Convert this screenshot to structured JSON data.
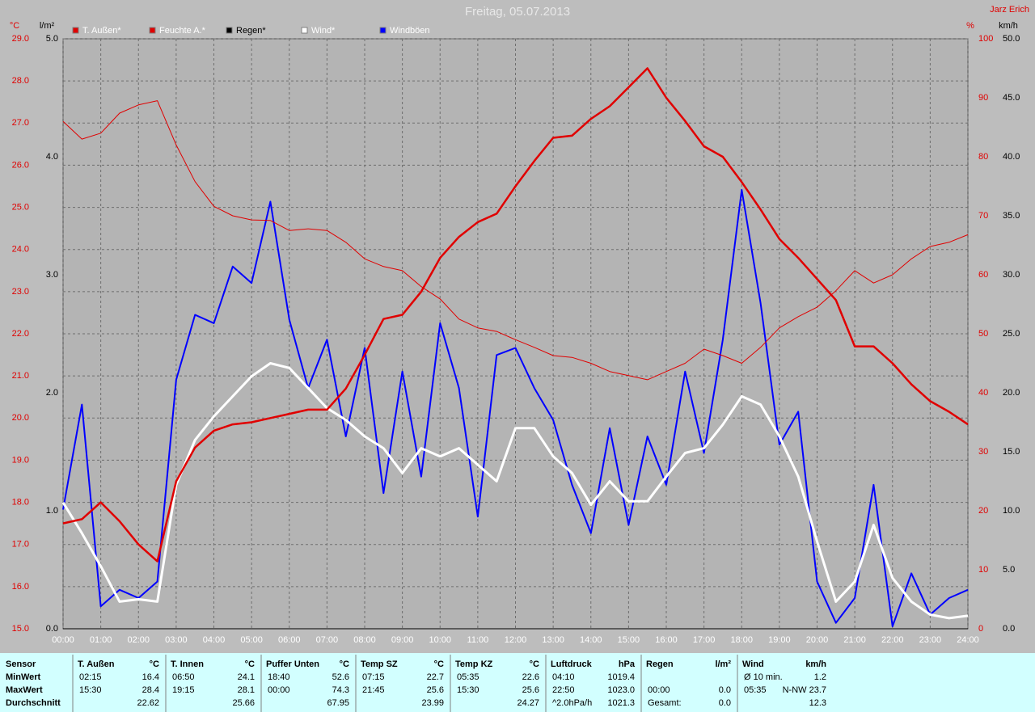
{
  "chart_data": {
    "type": "line",
    "title": "Freitag, 05.07.2013",
    "author": "Jarz Erich",
    "ylabel": "°C",
    "y2label": "%",
    "y3label": "l/m²",
    "y4label": "km/h",
    "x": [
      "00:00",
      "00:30",
      "01:00",
      "01:30",
      "02:00",
      "02:30",
      "03:00",
      "03:30",
      "04:00",
      "04:30",
      "05:00",
      "05:30",
      "06:00",
      "06:30",
      "07:00",
      "07:30",
      "08:00",
      "08:30",
      "09:00",
      "09:30",
      "10:00",
      "10:30",
      "11:00",
      "11:30",
      "12:00",
      "12:30",
      "13:00",
      "13:30",
      "14:00",
      "14:30",
      "15:00",
      "15:30",
      "16:00",
      "16:30",
      "17:00",
      "17:30",
      "18:00",
      "18:30",
      "19:00",
      "19:30",
      "20:00",
      "20:30",
      "21:00",
      "21:30",
      "22:00",
      "22:30",
      "23:00",
      "23:30",
      "24:00"
    ],
    "xlim": [
      "00:00",
      "24:00"
    ],
    "xticks": [
      "00:00",
      "01:00",
      "02:00",
      "03:00",
      "04:00",
      "05:00",
      "06:00",
      "07:00",
      "08:00",
      "09:00",
      "10:00",
      "11:00",
      "12:00",
      "13:00",
      "14:00",
      "15:00",
      "16:00",
      "17:00",
      "18:00",
      "19:00",
      "20:00",
      "21:00",
      "22:00",
      "23:00",
      "24:00"
    ],
    "ylim": [
      15,
      29
    ],
    "yticks": [
      {
        "value": 15,
        "label": "15.0"
      },
      {
        "value": 16,
        "label": "16.0"
      },
      {
        "value": 17,
        "label": "17.0"
      },
      {
        "value": 18,
        "label": "18.0"
      },
      {
        "value": 19,
        "label": "19.0"
      },
      {
        "value": 20,
        "label": "20.0"
      },
      {
        "value": 21,
        "label": "21.0"
      },
      {
        "value": 22,
        "label": "22.0"
      },
      {
        "value": 23,
        "label": "23.0"
      },
      {
        "value": 24,
        "label": "24.0"
      },
      {
        "value": 25,
        "label": "25.0"
      },
      {
        "value": 26,
        "label": "26.0"
      },
      {
        "value": 27,
        "label": "27.0"
      },
      {
        "value": 28,
        "label": "28.0"
      },
      {
        "value": 29,
        "label": "29.0"
      }
    ],
    "y2lim": [
      0,
      100
    ],
    "y2ticks": [
      0,
      10,
      20,
      30,
      40,
      50,
      60,
      70,
      80,
      90,
      100
    ],
    "y3lim": [
      0,
      5
    ],
    "y3ticks": [
      {
        "value": 0,
        "label": "0.0"
      },
      {
        "value": 1,
        "label": "1.0"
      },
      {
        "value": 2,
        "label": "2.0"
      },
      {
        "value": 3,
        "label": "3.0"
      },
      {
        "value": 4,
        "label": "4.0"
      },
      {
        "value": 5,
        "label": "5.0"
      }
    ],
    "y4lim": [
      0,
      50
    ],
    "y4ticks": [
      {
        "value": 0,
        "label": "0.0"
      },
      {
        "value": 5,
        "label": "5.0"
      },
      {
        "value": 10,
        "label": "10.0"
      },
      {
        "value": 15,
        "label": "15.0"
      },
      {
        "value": 20,
        "label": "20.0"
      },
      {
        "value": 25,
        "label": "25.0"
      },
      {
        "value": 30,
        "label": "30.0"
      },
      {
        "value": 35,
        "label": "35.0"
      },
      {
        "value": 40,
        "label": "40.0"
      },
      {
        "value": 45,
        "label": "45.0"
      },
      {
        "value": 50,
        "label": "50.0"
      }
    ],
    "grid": true,
    "series": [
      {
        "name": "T. Außen*",
        "color": "#e00000",
        "axis": "y",
        "width": 2.5,
        "values": [
          17.5,
          17.6,
          18.0,
          17.55,
          17.0,
          16.6,
          18.5,
          19.3,
          19.7,
          19.85,
          19.9,
          20.0,
          20.1,
          20.2,
          20.2,
          20.7,
          21.5,
          22.35,
          22.45,
          23.0,
          23.8,
          24.3,
          24.65,
          24.85,
          25.5,
          26.1,
          26.65,
          26.7,
          27.1,
          27.4,
          27.85,
          28.3,
          27.6,
          27.05,
          26.45,
          26.2,
          25.6,
          24.95,
          24.25,
          23.8,
          23.3,
          22.8,
          21.7,
          21.7,
          21.3,
          20.8,
          20.4,
          20.15,
          19.85
        ]
      },
      {
        "name": "Feuchte A.*",
        "color": "#e00000",
        "axis": "y2",
        "width": 1,
        "values": [
          86,
          83,
          84,
          87.4,
          88.8,
          89.5,
          82,
          75.8,
          71.6,
          70,
          69.3,
          69.2,
          67.5,
          67.8,
          67.5,
          65.5,
          62.7,
          61.4,
          60.7,
          58,
          55.9,
          52.5,
          51,
          50.4,
          49,
          47.7,
          46.3,
          46,
          45,
          43.6,
          42.9,
          42.2,
          43.6,
          45,
          47.4,
          46.3,
          45,
          47.7,
          51,
          52.9,
          54.5,
          57.3,
          60.7,
          58.6,
          60,
          62.7,
          64.8,
          65.5,
          66.8
        ]
      },
      {
        "name": "Regen*",
        "color": "#000000",
        "axis": "y3",
        "width": 1,
        "values": [
          0,
          0,
          0,
          0,
          0,
          0,
          0,
          0,
          0,
          0,
          0,
          0,
          0,
          0,
          0,
          0,
          0,
          0,
          0,
          0,
          0,
          0,
          0,
          0,
          0,
          0,
          0,
          0,
          0,
          0,
          0,
          0,
          0,
          0,
          0,
          0,
          0,
          0,
          0,
          0,
          0,
          0,
          0,
          0,
          0,
          0,
          0,
          0,
          0
        ]
      },
      {
        "name": "Wind*",
        "color": "#ffffff",
        "axis": "y4",
        "width": 3,
        "values": [
          10.7,
          8.1,
          5.3,
          2.3,
          2.5,
          2.3,
          12.2,
          16,
          18,
          19.7,
          21.4,
          22.5,
          22.1,
          20.4,
          18.7,
          17.7,
          16.3,
          15.3,
          13.2,
          15.3,
          14.6,
          15.3,
          13.9,
          12.5,
          17,
          17,
          14.6,
          13.2,
          10.5,
          12.5,
          10.8,
          10.8,
          12.9,
          14.9,
          15.3,
          17.3,
          19.7,
          19,
          16.3,
          12.9,
          7.4,
          2.3,
          4,
          8.8,
          4.3,
          2.3,
          1.2,
          0.9,
          1.1
        ]
      },
      {
        "name": "Windböen",
        "color": "#0000ff",
        "axis": "y4",
        "width": 2,
        "values": [
          10.1,
          19,
          1.9,
          3.3,
          2.6,
          4,
          21.1,
          26.6,
          25.9,
          30.7,
          29.3,
          36.2,
          26.2,
          20.4,
          24.5,
          16.3,
          23.8,
          11.5,
          21.8,
          12.9,
          25.9,
          20.4,
          9.5,
          23.2,
          23.8,
          20.4,
          17.7,
          12.2,
          8.1,
          17,
          8.8,
          16.3,
          12.2,
          21.8,
          14.9,
          24.5,
          37.2,
          27.6,
          15.6,
          18.4,
          4,
          0.5,
          2.6,
          12.2,
          0.2,
          4.7,
          1.2,
          2.6,
          3.3
        ]
      }
    ]
  },
  "table": {
    "row_labels": [
      "Sensor",
      "MinWert",
      "MaxWert",
      "Durchschnitt"
    ],
    "columns": [
      {
        "name": "T. Außen",
        "unit": "°C",
        "cells": [
          [
            "02:15",
            "16.4"
          ],
          [
            "15:30",
            "28.4"
          ],
          [
            null,
            "22.62"
          ]
        ]
      },
      {
        "name": "T. Innen",
        "unit": "°C",
        "cells": [
          [
            "06:50",
            "24.1"
          ],
          [
            "19:15",
            "28.1"
          ],
          [
            null,
            "25.66"
          ]
        ]
      },
      {
        "name": "Puffer Unten",
        "unit": "°C",
        "cells": [
          [
            "18:40",
            "52.6"
          ],
          [
            "00:00",
            "74.3"
          ],
          [
            null,
            "67.95"
          ]
        ]
      },
      {
        "name": "Temp SZ",
        "unit": "°C",
        "cells": [
          [
            "07:15",
            "22.7"
          ],
          [
            "21:45",
            "25.6"
          ],
          [
            null,
            "23.99"
          ]
        ]
      },
      {
        "name": "Temp KZ",
        "unit": "°C",
        "cells": [
          [
            "05:35",
            "22.6"
          ],
          [
            "15:30",
            "25.6"
          ],
          [
            null,
            "24.27"
          ]
        ]
      },
      {
        "name": "Luftdruck",
        "unit": "hPa",
        "cells": [
          [
            "04:10",
            "1019.4"
          ],
          [
            "22:50",
            "1023.0"
          ],
          [
            "^2.0hPa/h",
            "1021.3"
          ]
        ]
      },
      {
        "name": "Regen",
        "unit": "l/m²",
        "cells": [
          [
            null,
            null
          ],
          [
            "00:00",
            "0.0"
          ],
          [
            "Gesamt:",
            "0.0"
          ]
        ]
      },
      {
        "name": "Wind",
        "unit": "km/h",
        "cells": [
          [
            "Ø 10 min.",
            "1.2"
          ],
          [
            "05:35",
            "N-NW 23.7"
          ],
          [
            null,
            "12.3"
          ]
        ]
      }
    ]
  }
}
